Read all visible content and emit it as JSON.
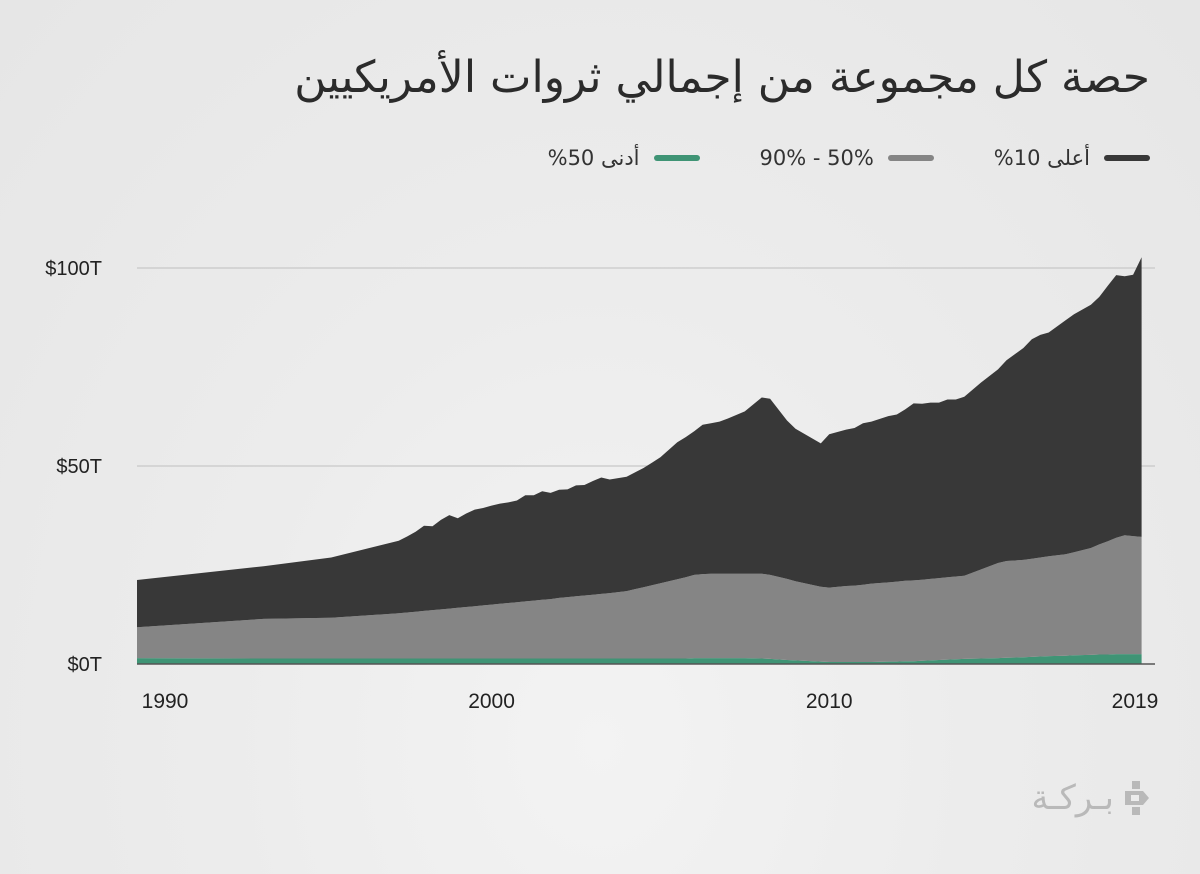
{
  "title": "حصة كل مجموعة من إجمالي ثروات الأمريكيين",
  "brand": {
    "name": "بـركـة",
    "icon": "barakah-logo-icon"
  },
  "colors": {
    "top10": "#383838",
    "mid": "#858585",
    "bottom50": "#3f9475",
    "grid": "#c8c8c8",
    "axis": "#555555"
  },
  "chart_data": {
    "type": "area",
    "title": "حصة كل مجموعة من إجمالي ثروات الأمريكيين",
    "xlabel": "",
    "ylabel": "",
    "stacked": true,
    "legend_position": "top-right",
    "grid": true,
    "x_ticks": [
      {
        "value": 1990,
        "label": "1990"
      },
      {
        "value": 2000,
        "label": "2000"
      },
      {
        "value": 2010,
        "label": "2010"
      },
      {
        "value": 2019,
        "label": "2019"
      }
    ],
    "y_ticks": [
      {
        "value": 0,
        "label": "$0T"
      },
      {
        "value": 50,
        "label": "$50T"
      },
      {
        "value": 100,
        "label": "$100T"
      }
    ],
    "xlim": [
      1989.5,
      2019.5
    ],
    "ylim": [
      0,
      110
    ],
    "x": [
      1989.5,
      1993.25,
      1995.25,
      1997.25,
      1997.5,
      1997.75,
      1998.0,
      1998.25,
      1998.5,
      1998.75,
      1999.0,
      1999.25,
      1999.5,
      1999.75,
      2000.0,
      2000.25,
      2000.5,
      2000.75,
      2001.0,
      2001.25,
      2001.5,
      2001.75,
      2002.0,
      2002.25,
      2002.5,
      2002.75,
      2003.0,
      2003.25,
      2003.5,
      2004.0,
      2004.5,
      2004.75,
      2005.0,
      2005.5,
      2005.75,
      2006.0,
      2006.25,
      2006.5,
      2006.75,
      2007.0,
      2007.5,
      2008.0,
      2008.25,
      2008.75,
      2009.0,
      2009.75,
      2010.0,
      2010.5,
      2010.75,
      2011.0,
      2011.25,
      2011.75,
      2012.0,
      2012.25,
      2012.5,
      2012.75,
      2013.0,
      2013.25,
      2013.5,
      2013.75,
      2014.0,
      2014.5,
      2015.0,
      2015.25,
      2015.75,
      2016.0,
      2016.25,
      2016.5,
      2017.0,
      2017.25,
      2017.75,
      2018.0,
      2018.25,
      2018.5,
      2018.75,
      2019.0,
      2019.25
    ],
    "series": [
      {
        "name": "أدنى 50%",
        "color": "#3f9475",
        "values": [
          1.5,
          1.4,
          1.4,
          1.4,
          1.4,
          1.4,
          1.4,
          1.4,
          1.4,
          1.4,
          1.4,
          1.4,
          1.4,
          1.4,
          1.4,
          1.4,
          1.4,
          1.4,
          1.4,
          1.4,
          1.4,
          1.4,
          1.4,
          1.4,
          1.4,
          1.4,
          1.4,
          1.4,
          1.4,
          1.4,
          1.4,
          1.4,
          1.4,
          1.4,
          1.4,
          1.5,
          1.5,
          1.5,
          1.5,
          1.5,
          1.5,
          1.4,
          1.3,
          1.0,
          0.9,
          0.6,
          0.5,
          0.5,
          0.5,
          0.5,
          0.5,
          0.6,
          0.6,
          0.7,
          0.7,
          0.8,
          0.9,
          1.0,
          1.1,
          1.2,
          1.3,
          1.4,
          1.5,
          1.6,
          1.7,
          1.8,
          1.9,
          2.0,
          2.1,
          2.2,
          2.3,
          2.4,
          2.4,
          2.5,
          2.5,
          2.5,
          2.5
        ]
      },
      {
        "name": "90% - 50%",
        "color": "#858585",
        "values": [
          7.8,
          10.0,
          10.3,
          11.4,
          11.6,
          11.8,
          12.0,
          12.2,
          12.4,
          12.6,
          12.8,
          13.0,
          13.2,
          13.4,
          13.6,
          13.8,
          14.0,
          14.2,
          14.4,
          14.6,
          14.8,
          15.0,
          15.3,
          15.5,
          15.7,
          15.9,
          16.1,
          16.3,
          16.5,
          17.0,
          18.0,
          18.5,
          19.0,
          20.0,
          20.5,
          21.0,
          21.2,
          21.3,
          21.3,
          21.3,
          21.3,
          21.4,
          21.2,
          20.5,
          20.0,
          18.9,
          18.8,
          19.2,
          19.3,
          19.5,
          19.8,
          20.0,
          20.2,
          20.3,
          20.4,
          20.5,
          20.6,
          20.7,
          20.8,
          20.9,
          21.0,
          22.5,
          24.0,
          24.4,
          24.6,
          24.8,
          25.0,
          25.2,
          25.6,
          26.0,
          27.0,
          27.8,
          28.6,
          29.4,
          30.0,
          29.8,
          29.6
        ]
      },
      {
        "name": "أعلى 10%",
        "color": "#383838",
        "values": [
          11.9,
          13.3,
          15.2,
          18.3,
          19.2,
          20.2,
          21.5,
          21.2,
          22.6,
          23.6,
          22.6,
          23.6,
          24.4,
          24.6,
          25.0,
          25.3,
          25.4,
          25.7,
          26.8,
          26.6,
          27.4,
          26.8,
          27.3,
          27.2,
          28.0,
          27.9,
          28.7,
          29.4,
          28.7,
          28.9,
          30.1,
          30.9,
          31.8,
          34.6,
          35.4,
          36.3,
          37.7,
          38.0,
          38.4,
          39.2,
          41.0,
          44.5,
          44.5,
          40.0,
          38.5,
          36.2,
          38.7,
          39.5,
          39.8,
          40.8,
          40.9,
          42.0,
          42.2,
          43.3,
          44.7,
          44.4,
          44.5,
          44.3,
          44.9,
          44.7,
          45.2,
          47.2,
          48.9,
          50.7,
          53.5,
          55.4,
          56.2,
          56.5,
          59.1,
          60.1,
          61.4,
          62.5,
          64.5,
          66.3,
          65.4,
          66.0,
          70.6
        ]
      }
    ]
  }
}
